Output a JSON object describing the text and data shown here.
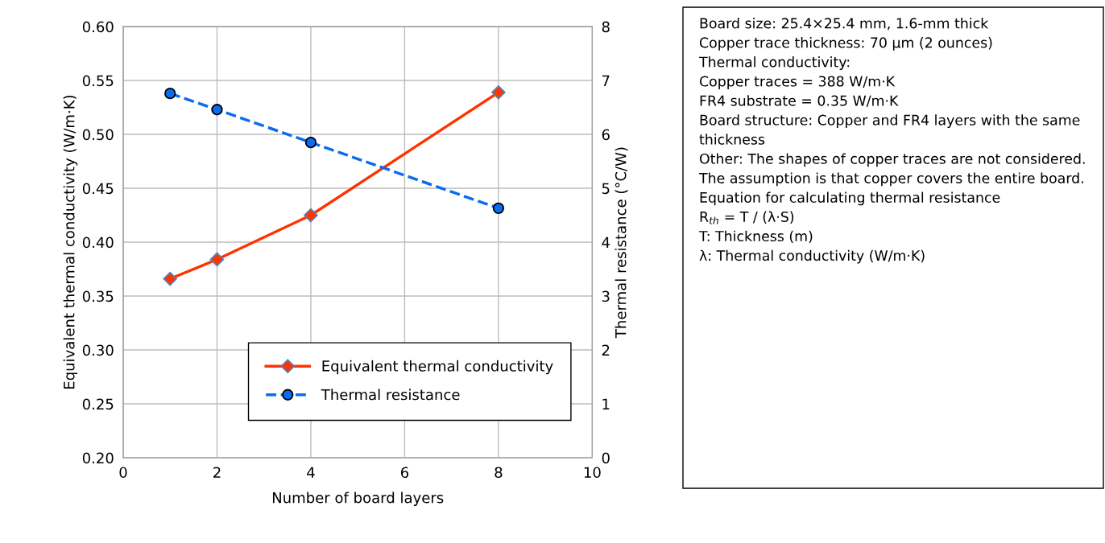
{
  "chart_data": {
    "type": "line",
    "xlabel": "Number of board layers",
    "ylabel": "Equivalent thermal conductivity (W/m·K)",
    "y2label": "Thermal resistance (°C/W)",
    "x": [
      1,
      2,
      4,
      8
    ],
    "series": [
      {
        "name": "Equivalent thermal conductivity",
        "color": "#ff3300",
        "values": [
          0.366,
          0.384,
          0.425,
          0.539
        ],
        "marker": "diamond",
        "line_style": "solid"
      },
      {
        "name": "Thermal resistance",
        "color": "#0a6cf0",
        "values": [
          6.76,
          6.46,
          5.85,
          4.63
        ],
        "marker": "circle",
        "line_style": "dashed",
        "axis": "y2"
      }
    ],
    "xlim": [
      0,
      10
    ],
    "xticks": [
      0,
      2,
      4,
      6,
      8,
      10
    ],
    "ylim": [
      0.2,
      0.6
    ],
    "yticks": [
      {
        "value": 0.2,
        "label": "0.20"
      },
      {
        "value": 0.25,
        "label": "0.25"
      },
      {
        "value": 0.3,
        "label": "0.30"
      },
      {
        "value": 0.35,
        "label": "0.35"
      },
      {
        "value": 0.4,
        "label": "0.40"
      },
      {
        "value": 0.45,
        "label": "0.45"
      },
      {
        "value": 0.5,
        "label": "0.50"
      },
      {
        "value": 0.55,
        "label": "0.55"
      },
      {
        "value": 0.6,
        "label": "0.60"
      }
    ],
    "y2lim": [
      0,
      8
    ],
    "y2ticks": [
      0,
      1,
      2,
      3,
      4,
      5,
      6,
      7,
      8
    ],
    "grid": true,
    "legend": "bottom right",
    "annotations": [
      "Board size: 25.4×25.4 mm, 1.6-mm thick",
      "Copper trace thickness: 70 µm (2 ounces)",
      "Thermal conductivity:",
      "Copper traces = 388 W/m·K",
      "FR4 substrate = 0.35 W/m·K",
      "Board structure: Copper and FR4 layers with the same thickness",
      "Other: The shapes of copper traces are not considered. The assumption is that copper covers the entire board.",
      "Equation for calculating thermal resistance",
      "R$_{th}$ = T / (λ·S)",
      "T: Thickness (m)",
      "λ: Thermal conductivity (W/m·K)"
    ]
  }
}
